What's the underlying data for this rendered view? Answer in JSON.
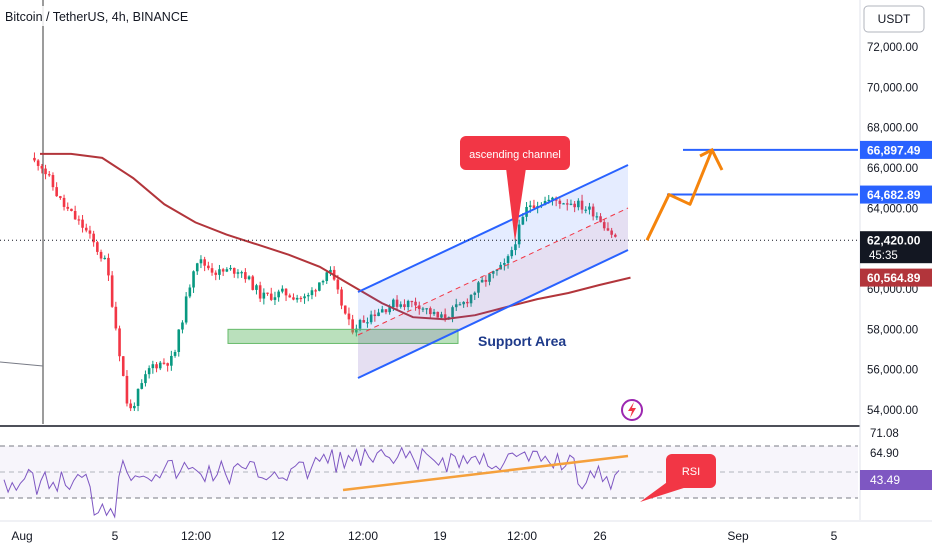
{
  "header": {
    "title": "Bitcoin / TetherUS, 4h, BINANCE",
    "currency": "USDT"
  },
  "chart_data": [
    {
      "type": "candlestick",
      "symbol": "Bitcoin / TetherUS",
      "interval": "4h",
      "exchange": "BINANCE",
      "ylim": [
        53500,
        73500
      ],
      "y_ticks": [
        "72,000.00",
        "70,000.00",
        "68,000.00",
        "66,000.00",
        "64,000.00",
        "60,000.00",
        "58,000.00",
        "56,000.00",
        "54,000.00"
      ],
      "x_ticks": [
        "Aug",
        "5",
        "12:00",
        "12",
        "12:00",
        "19",
        "12:00",
        "26",
        "Sep",
        "5"
      ],
      "price_labels": {
        "target_2": "66,897.49",
        "target_1": "64,682.89",
        "current": "62,420.00",
        "countdown": "45:35",
        "moving_average": "60,564.89"
      },
      "close_path": [
        [
          "Aug 1",
          66300
        ],
        [
          "Aug 2",
          64200
        ],
        [
          "Aug 3",
          63000
        ],
        [
          "Aug 4",
          61200
        ],
        [
          "Aug 5",
          53800
        ],
        [
          "Aug 6",
          56200
        ],
        [
          "Aug 7",
          56500
        ],
        [
          "Aug 8",
          61500
        ],
        [
          "Aug 9",
          60800
        ],
        [
          "Aug 10",
          61000
        ],
        [
          "Aug 11",
          59600
        ],
        [
          "Aug 12",
          59800
        ],
        [
          "Aug 13",
          59500
        ],
        [
          "Aug 14",
          61000
        ],
        [
          "Aug 15",
          58000
        ],
        [
          "Aug 16",
          58800
        ],
        [
          "Aug 17",
          59300
        ],
        [
          "Aug 18",
          59300
        ],
        [
          "Aug 19",
          58500
        ],
        [
          "Aug 20",
          59200
        ],
        [
          "Aug 21",
          60400
        ],
        [
          "Aug 22",
          61200
        ],
        [
          "Aug 23",
          64200
        ],
        [
          "Aug 24",
          64400
        ],
        [
          "Aug 25",
          64300
        ],
        [
          "Aug 26",
          63800
        ],
        [
          "Aug 27",
          62420
        ]
      ],
      "moving_average_path": [
        66700,
        66700,
        66500,
        65500,
        64200,
        63300,
        62700,
        62200,
        61700,
        61100,
        60200,
        59300,
        58600,
        58500,
        58700,
        59100,
        59500,
        59800,
        60200,
        60564.89
      ],
      "annotations": {
        "pattern_label": "ascending channel",
        "zone_label": "Support Area",
        "support_zone": [
          57300,
          58000
        ],
        "projection": [
          62420,
          64682.89,
          64200,
          66897.49
        ]
      }
    },
    {
      "type": "line",
      "name": "RSI",
      "levels": [
        "71.08",
        "64.90",
        "43.49"
      ],
      "current_value": "43.49",
      "callout": "RSI"
    }
  ],
  "colors": {
    "up": "#089981",
    "down": "#f23645",
    "channel": "#2962ff",
    "moving_average": "#b2353b",
    "projection": "#f5840c",
    "rsi_line": "#7e57c2",
    "rsi_trend": "#f5a03c",
    "support_zone": "#66bb6a"
  },
  "icons": [
    "flash-icon"
  ]
}
